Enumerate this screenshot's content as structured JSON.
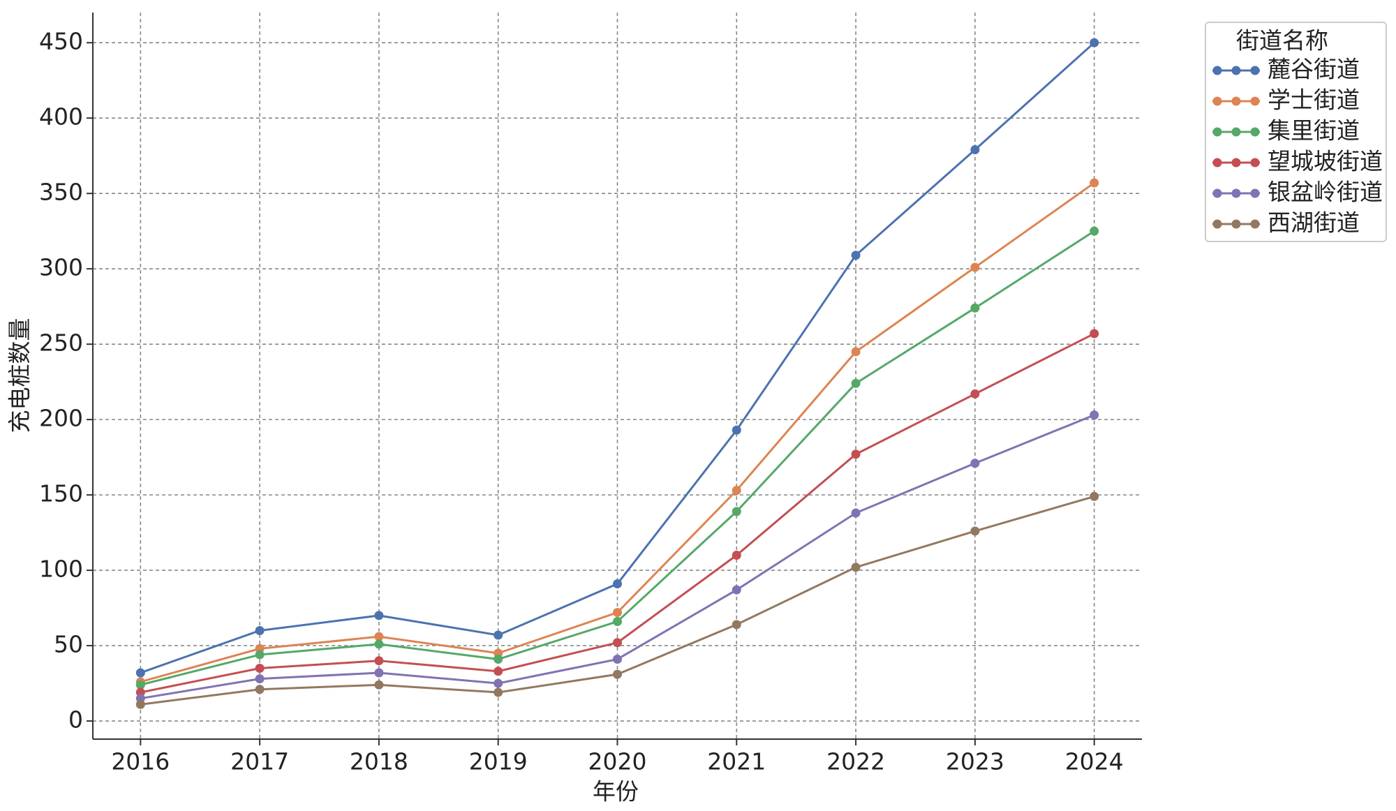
{
  "chart_data": {
    "type": "line",
    "x_label": "年份",
    "y_label": "充电桩数量",
    "legend_title": "街道名称",
    "legend": "upper right outside",
    "grid": true,
    "x": [
      2016,
      2017,
      2018,
      2019,
      2020,
      2021,
      2022,
      2023,
      2024
    ],
    "xlim": [
      2015.6,
      2024.4
    ],
    "xticks": [
      2016,
      2017,
      2018,
      2019,
      2020,
      2021,
      2022,
      2023,
      2024
    ],
    "ylim": [
      -12,
      470
    ],
    "yticks": [
      0,
      50,
      100,
      150,
      200,
      250,
      300,
      350,
      400,
      450
    ],
    "series": [
      {
        "name": "麓谷街道",
        "color": "#4c72b0",
        "values": [
          32,
          60,
          70,
          57,
          91,
          193,
          309,
          379,
          450
        ]
      },
      {
        "name": "学士街道",
        "color": "#dd8452",
        "values": [
          26,
          48,
          56,
          45,
          72,
          153,
          245,
          301,
          357
        ]
      },
      {
        "name": "集里街道",
        "color": "#55a868",
        "values": [
          24,
          44,
          51,
          41,
          66,
          139,
          224,
          274,
          325
        ]
      },
      {
        "name": "望城坡街道",
        "color": "#c44e52",
        "values": [
          19,
          35,
          40,
          33,
          52,
          110,
          177,
          217,
          257
        ]
      },
      {
        "name": "银盆岭街道",
        "color": "#8172b3",
        "values": [
          15,
          28,
          32,
          25,
          41,
          87,
          138,
          171,
          203
        ]
      },
      {
        "name": "西湖街道",
        "color": "#937860",
        "values": [
          11,
          21,
          24,
          19,
          31,
          64,
          102,
          126,
          149
        ]
      }
    ]
  }
}
